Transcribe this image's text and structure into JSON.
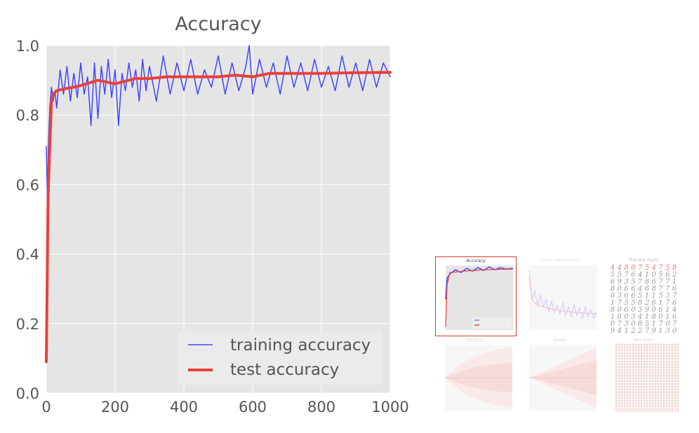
{
  "chart_data": {
    "type": "line",
    "title": "Accuracy",
    "xlabel": "",
    "ylabel": "",
    "xlim": [
      0,
      1000
    ],
    "ylim": [
      0.0,
      1.0
    ],
    "xticks": [
      "0",
      "200",
      "400",
      "600",
      "800",
      "1000"
    ],
    "yticks": [
      "0.0",
      "0.2",
      "0.4",
      "0.6",
      "0.8",
      "1.0"
    ],
    "grid": true,
    "legend_position": "lower-right",
    "background": "#e5e5e5",
    "series": [
      {
        "name": "training accuracy",
        "color": "#4444ff",
        "style": "noisy-line",
        "x": [
          0,
          3,
          6,
          10,
          15,
          20,
          25,
          30,
          40,
          50,
          60,
          70,
          80,
          90,
          100,
          110,
          120,
          130,
          140,
          150,
          160,
          170,
          180,
          190,
          200,
          210,
          220,
          230,
          240,
          250,
          260,
          270,
          280,
          290,
          300,
          320,
          340,
          360,
          380,
          400,
          420,
          440,
          460,
          480,
          500,
          520,
          540,
          560,
          580,
          590,
          600,
          620,
          640,
          660,
          680,
          700,
          720,
          740,
          760,
          780,
          800,
          820,
          840,
          860,
          880,
          900,
          920,
          940,
          960,
          980,
          1000
        ],
        "values": [
          0.71,
          0.56,
          0.71,
          0.82,
          0.88,
          0.84,
          0.87,
          0.82,
          0.93,
          0.86,
          0.94,
          0.84,
          0.92,
          0.85,
          0.95,
          0.86,
          0.91,
          0.77,
          0.95,
          0.79,
          0.94,
          0.86,
          0.96,
          0.85,
          0.93,
          0.77,
          0.92,
          0.87,
          0.95,
          0.88,
          0.93,
          0.84,
          0.96,
          0.87,
          0.94,
          0.84,
          0.97,
          0.86,
          0.95,
          0.87,
          0.96,
          0.86,
          0.93,
          0.88,
          0.97,
          0.86,
          0.95,
          0.87,
          0.94,
          1.0,
          0.86,
          0.96,
          0.88,
          0.95,
          0.86,
          0.97,
          0.88,
          0.95,
          0.87,
          0.96,
          0.88,
          0.94,
          0.87,
          0.97,
          0.88,
          0.95,
          0.87,
          0.96,
          0.88,
          0.95,
          0.91
        ]
      },
      {
        "name": "test accuracy",
        "color": "#e8413a",
        "style": "thick-line",
        "x": [
          0,
          5,
          10,
          15,
          20,
          30,
          50,
          80,
          100,
          150,
          200,
          260,
          300,
          350,
          400,
          450,
          500,
          550,
          600,
          650,
          700,
          800,
          900,
          1000
        ],
        "values": [
          0.09,
          0.56,
          0.71,
          0.84,
          0.86,
          0.87,
          0.875,
          0.88,
          0.885,
          0.9,
          0.89,
          0.905,
          0.905,
          0.91,
          0.91,
          0.91,
          0.91,
          0.915,
          0.91,
          0.92,
          0.92,
          0.92,
          0.922,
          0.923
        ]
      }
    ]
  },
  "thumbnails": [
    {
      "title": "Accuracy",
      "selected": true
    },
    {
      "title": "Cross entropy loss",
      "selected": false
    },
    {
      "title": "Training digits",
      "selected": false
    },
    {
      "title": "Weights",
      "selected": false
    },
    {
      "title": "Biases",
      "selected": false
    },
    {
      "title": "Test digits",
      "selected": false
    }
  ],
  "training_digits": [
    "4",
    "4",
    "8",
    "0",
    "7",
    "5",
    "4",
    "7",
    "5",
    "8",
    "5",
    "5",
    "7",
    "6",
    "4",
    "1",
    "0",
    "5",
    "6",
    "2",
    "6",
    "9",
    "3",
    "5",
    "7",
    "8",
    "6",
    "7",
    "7",
    "1",
    "8",
    "0",
    "6",
    "6",
    "4",
    "6",
    "8",
    "7",
    "7",
    "6",
    "0",
    "3",
    "6",
    "6",
    "5",
    "1",
    "1",
    "5",
    "3",
    "7",
    "1",
    "7",
    "5",
    "5",
    "8",
    "2",
    "6",
    "1",
    "7",
    "6",
    "8",
    "0",
    "6",
    "0",
    "3",
    "9",
    "0",
    "6",
    "1",
    "4",
    "1",
    "0",
    "0",
    "3",
    "4",
    "1",
    "8",
    "0",
    "1",
    "6",
    "0",
    "7",
    "3",
    "0",
    "8",
    "5",
    "1",
    "7",
    "0",
    "7",
    "9",
    "4",
    "1",
    "2",
    "2",
    "7",
    "9",
    "1",
    "3",
    "0"
  ]
}
